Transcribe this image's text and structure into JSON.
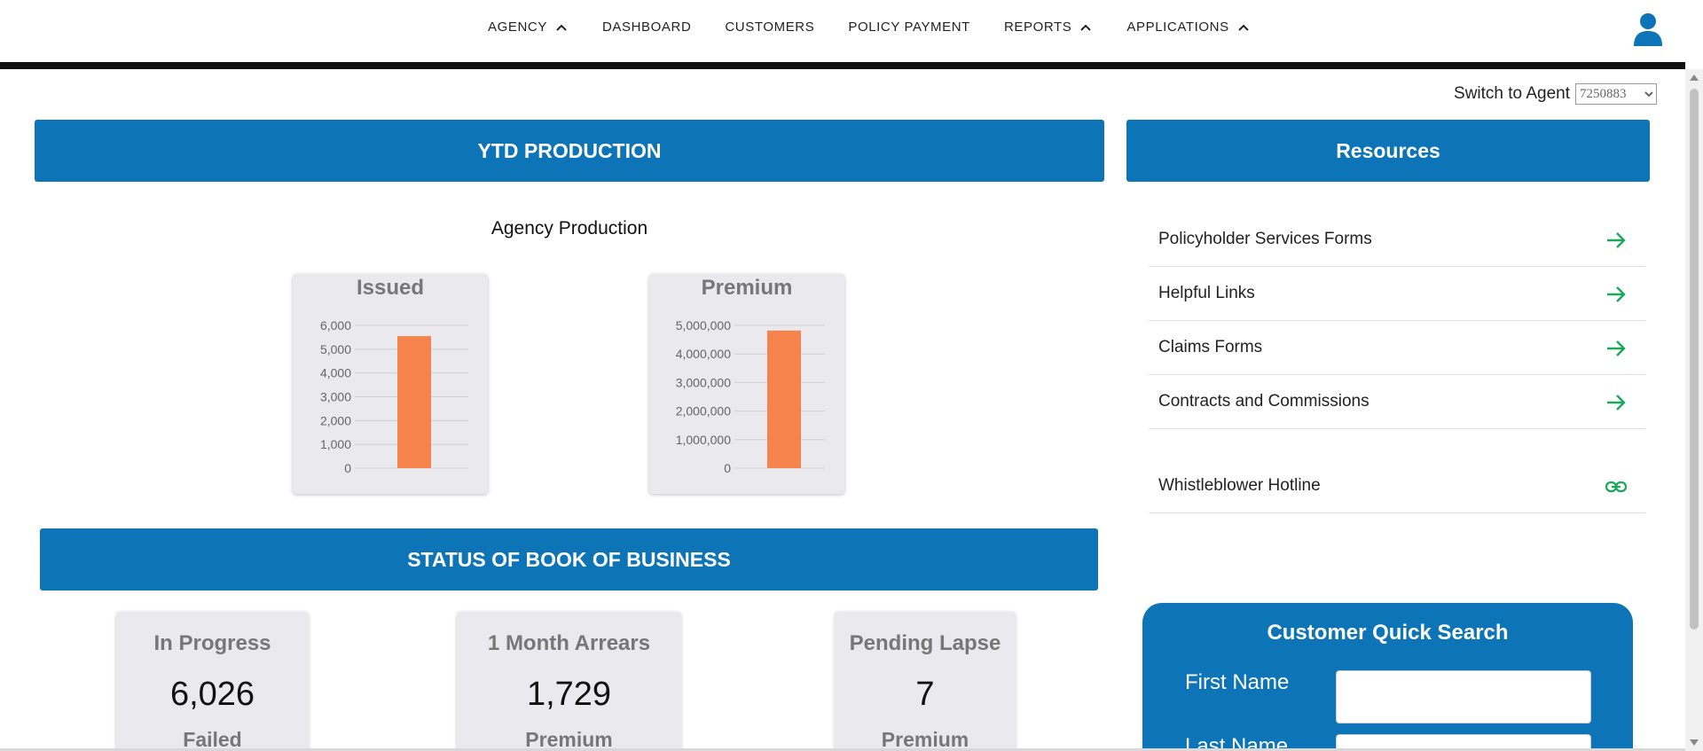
{
  "nav": {
    "items": [
      {
        "label": "AGENCY",
        "caret": true
      },
      {
        "label": "DASHBOARD",
        "caret": false
      },
      {
        "label": "CUSTOMERS",
        "caret": false
      },
      {
        "label": "POLICY PAYMENT",
        "caret": false
      },
      {
        "label": "REPORTS",
        "caret": true
      },
      {
        "label": "APPLICATIONS",
        "caret": true
      }
    ],
    "user_icon": "user-icon"
  },
  "switch_agent": {
    "label": "Switch to Agent",
    "selected": "7250883"
  },
  "ytd": {
    "banner": "YTD PRODUCTION",
    "subtitle": "Agency Production"
  },
  "chart_data": [
    {
      "type": "bar",
      "title": "Issued",
      "categories": [
        ""
      ],
      "values": [
        5550
      ],
      "ylim": [
        0,
        6000
      ],
      "yticks": [
        "0",
        "1,000",
        "2,000",
        "3,000",
        "4,000",
        "5,000",
        "6,000"
      ],
      "ytick_values": [
        0,
        1000,
        2000,
        3000,
        4000,
        5000,
        6000
      ],
      "color": "#f5834b",
      "grid": true
    },
    {
      "type": "bar",
      "title": "Premium",
      "categories": [
        ""
      ],
      "values": [
        4820000
      ],
      "ylim": [
        0,
        5000000
      ],
      "yticks": [
        "0",
        "1,000,000",
        "2,000,000",
        "3,000,000",
        "4,000,000",
        "5,000,000"
      ],
      "ytick_values": [
        0,
        1000000,
        2000000,
        3000000,
        4000000,
        5000000
      ],
      "color": "#f5834b",
      "grid": true
    }
  ],
  "resources": {
    "banner": "Resources",
    "items": [
      {
        "label": "Policyholder Services Forms",
        "icon": "arrow-right-icon"
      },
      {
        "label": "Helpful Links",
        "icon": "arrow-right-icon"
      },
      {
        "label": "Claims Forms",
        "icon": "arrow-right-icon"
      },
      {
        "label": "Contracts and Commissions",
        "icon": "arrow-right-icon"
      }
    ],
    "hotline": {
      "label": "Whistleblower Hotline",
      "icon": "link-icon"
    },
    "accent": "#1aa85a"
  },
  "book": {
    "banner": "STATUS OF BOOK OF BUSINESS",
    "cards": [
      {
        "label": "In Progress",
        "value": "6,026",
        "sub": "Failed"
      },
      {
        "label": "1 Month Arrears",
        "value": "1,729",
        "sub": "Premium"
      },
      {
        "label": "Pending Lapse",
        "value": "7",
        "sub": "Premium"
      }
    ]
  },
  "quick_search": {
    "title": "Customer Quick Search",
    "first_name_label": "First Name",
    "last_name_label": "Last Name",
    "first_name_value": "",
    "last_name_value": ""
  },
  "colors": {
    "primary": "#0d74b8",
    "bar": "#f5834b",
    "card_bg": "#e9e9ee"
  }
}
